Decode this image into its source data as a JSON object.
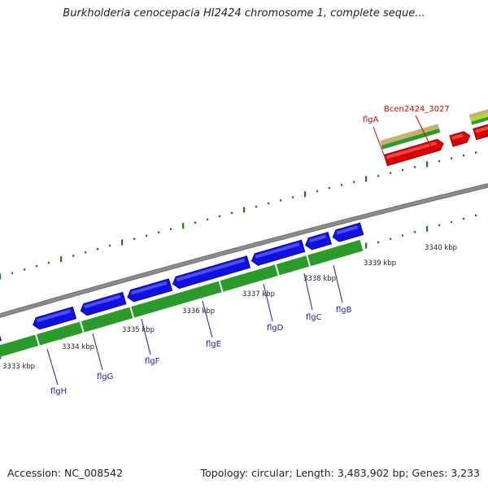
{
  "title": "Burkholderia cenocepacia HI2424 chromosome 1, complete seque...",
  "accession": "Accession: NC_008542",
  "summary": "Topology: circular; Length: 3,483,902 bp; Genes: 3,233",
  "scale_labels": [
    "3333 kbp",
    "3334 kbp",
    "3335 kbp",
    "3336 kbp",
    "3337 kbp",
    "3338 kbp",
    "3339 kbp",
    "3340 kbp"
  ],
  "gene_labels": [
    "flgH",
    "flgG",
    "flgF",
    "flgE",
    "flgD",
    "flgC",
    "flgB",
    "flgA",
    "Bcen2424_3027"
  ],
  "colors": {
    "backbone": "#8c8c8c",
    "forward_genes": "#1010e0",
    "reverse_genes": "#d80000",
    "cds_track": "#2a9a2a",
    "ticks": "#1a7a1a",
    "gene_label": "#1a1ab0",
    "gene_label_red": "#d40000",
    "tan_track": "#c8b070",
    "lime_track": "#a8e020"
  }
}
